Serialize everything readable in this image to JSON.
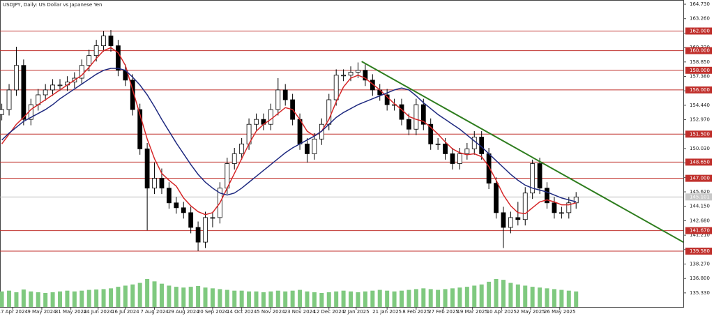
{
  "chart_data": {
    "type": "candlestick",
    "title": "USDJPY, Daily:  US Dollar vs Japanese Yen",
    "xlim": [
      -1,
      375
    ],
    "ylim": [
      133.9,
      165.16
    ],
    "xticks": [
      {
        "value": 6,
        "label": "17 Apr 2024"
      },
      {
        "value": 22,
        "label": "9 May 2024"
      },
      {
        "value": 38,
        "label": "31 May 2024"
      },
      {
        "value": 53,
        "label": "24 Jun 2024"
      },
      {
        "value": 68,
        "label": "16 Jul 2024"
      },
      {
        "value": 84,
        "label": "7 Aug 2024"
      },
      {
        "value": 100,
        "label": "29 Aug 2024"
      },
      {
        "value": 116,
        "label": "20 Sep 2024"
      },
      {
        "value": 132,
        "label": "14 Oct 2024"
      },
      {
        "value": 148,
        "label": "5 Nov 2024"
      },
      {
        "value": 164,
        "label": "23 Nov 2024"
      },
      {
        "value": 180,
        "label": "12 Dec 2024"
      },
      {
        "value": 195,
        "label": "2 Jan 2025"
      },
      {
        "value": 212,
        "label": "21 Jan 2025"
      },
      {
        "value": 228,
        "label": "8 Feb 2025"
      },
      {
        "value": 243,
        "label": "27 Feb 2025"
      },
      {
        "value": 259,
        "label": "19 Mar 2025"
      },
      {
        "value": 275,
        "label": "10 Apr 2025"
      },
      {
        "value": 291,
        "label": "2 May 2025"
      },
      {
        "value": 307,
        "label": "26 May 2025"
      }
    ],
    "yticks": [
      {
        "value": 164.73,
        "label": "164.730"
      },
      {
        "value": 163.26,
        "label": "163.260"
      },
      {
        "value": 161.79,
        "label": "161.790"
      },
      {
        "value": 160.32,
        "label": "160.320"
      },
      {
        "value": 158.85,
        "label": "158.850"
      },
      {
        "value": 157.38,
        "label": "157.380"
      },
      {
        "value": 155.91,
        "label": "155.910"
      },
      {
        "value": 154.44,
        "label": "154.440"
      },
      {
        "value": 152.97,
        "label": "152.970"
      },
      {
        "value": 151.5,
        "label": "151.500"
      },
      {
        "value": 150.03,
        "label": "150.030"
      },
      {
        "value": 148.56,
        "label": "148.560"
      },
      {
        "value": 147.09,
        "label": "147.090"
      },
      {
        "value": 145.62,
        "label": "145.620"
      },
      {
        "value": 144.15,
        "label": "144.150"
      },
      {
        "value": 142.68,
        "label": "142.680"
      },
      {
        "value": 141.21,
        "label": "141.210"
      },
      {
        "value": 139.74,
        "label": "139.740"
      },
      {
        "value": 138.27,
        "label": "138.270"
      },
      {
        "value": 136.8,
        "label": "136.800"
      },
      {
        "value": 135.33,
        "label": "135.330"
      }
    ],
    "levels": [
      {
        "value": 162,
        "label": "162.000"
      },
      {
        "value": 160,
        "label": "160.000"
      },
      {
        "value": 158,
        "label": "158.000"
      },
      {
        "value": 156,
        "label": "156.000"
      },
      {
        "value": 151.5,
        "label": "151.500"
      },
      {
        "value": 148.65,
        "label": "148.650"
      },
      {
        "value": 147,
        "label": "147.000"
      },
      {
        "value": 141.67,
        "label": "141.670"
      },
      {
        "value": 139.58,
        "label": "139.580"
      }
    ],
    "level_color": "#c0302c",
    "last_price": {
      "value": 145.101,
      "label": "145.101"
    },
    "x": [
      0,
      4,
      8,
      12,
      16,
      20,
      24,
      28,
      32,
      36,
      40,
      44,
      48,
      52,
      56,
      60,
      64,
      68,
      72,
      76,
      80,
      84,
      88,
      92,
      96,
      100,
      104,
      108,
      112,
      116,
      120,
      124,
      128,
      132,
      136,
      140,
      144,
      148,
      152,
      156,
      160,
      164,
      168,
      172,
      176,
      180,
      184,
      188,
      192,
      196,
      200,
      204,
      208,
      212,
      216,
      220,
      224,
      228,
      232,
      236,
      240,
      244,
      248,
      252,
      256,
      260,
      264,
      268,
      272,
      276,
      280,
      284,
      288,
      292,
      296,
      300,
      304,
      308,
      312,
      316
    ],
    "open": [
      153.5,
      154,
      156,
      158.5,
      153,
      154.5,
      155.5,
      156,
      156.5,
      156.5,
      156.8,
      157.2,
      158.5,
      159.5,
      160.5,
      161.5,
      160.5,
      158,
      157,
      154,
      150,
      146,
      147,
      146,
      144.5,
      144,
      143.5,
      142,
      140.5,
      143,
      143,
      146,
      148.5,
      149.5,
      150.5,
      152.5,
      153,
      152.5,
      154,
      156,
      155,
      153,
      150.5,
      149.5,
      151,
      152.5,
      155,
      157.5,
      157.5,
      157.8,
      158,
      157,
      156,
      155.5,
      154.5,
      154.5,
      153,
      152,
      154.5,
      152.5,
      150.5,
      150.5,
      149.5,
      148.5,
      149.5,
      150,
      151.2,
      149.5,
      146.5,
      143.5,
      142,
      143,
      142.8,
      145.5,
      148.5,
      146,
      144.5,
      143.5,
      143.5,
      144.5
    ],
    "high": [
      154.6,
      156.6,
      160.4,
      159.1,
      155.1,
      156.1,
      156.6,
      157.1,
      157.1,
      157.4,
      157.8,
      159.1,
      160.1,
      161.1,
      162,
      162.1,
      161.1,
      158.6,
      157.6,
      154.6,
      150.6,
      148.6,
      148,
      146.6,
      145.1,
      144.6,
      144.1,
      142.6,
      143.6,
      143.6,
      146.6,
      149.1,
      150.1,
      151.1,
      153.1,
      153.6,
      153.6,
      154.6,
      157.2,
      156.6,
      155.6,
      153.6,
      151.1,
      151.6,
      153.1,
      155.6,
      158.1,
      158.1,
      158.4,
      158.8,
      158.6,
      157.6,
      156.6,
      156.1,
      155.1,
      155.1,
      153.6,
      155.1,
      155.1,
      153.1,
      151.1,
      151.1,
      150.1,
      150.1,
      150.6,
      151.8,
      151.8,
      150.1,
      147.1,
      144.1,
      143.6,
      144.6,
      146.1,
      148.9,
      149.1,
      146.6,
      145.1,
      144.1,
      145.1,
      145.6
    ],
    "low": [
      152.9,
      153.4,
      155.4,
      152.4,
      152.4,
      153.9,
      154.9,
      155.4,
      155.9,
      155.9,
      156.2,
      156.6,
      157.9,
      158.9,
      159.9,
      159.9,
      157.4,
      156.4,
      153.4,
      149.4,
      141.7,
      145.4,
      145.4,
      143.9,
      143.4,
      142.9,
      141.4,
      139.6,
      139.9,
      142,
      142.4,
      145.4,
      147.9,
      148.9,
      149.9,
      151.9,
      151.9,
      151.9,
      153.4,
      154.4,
      152.4,
      149.9,
      148.6,
      148.9,
      150.4,
      151.9,
      154.4,
      156.9,
      156.9,
      157.2,
      156.4,
      155.4,
      154.9,
      153.9,
      153.9,
      152.4,
      151.4,
      151.4,
      151.9,
      149.9,
      149.9,
      148.9,
      147.9,
      147.9,
      148.9,
      149.4,
      148.9,
      145.9,
      142.9,
      139.9,
      141.4,
      142.2,
      142.2,
      144.9,
      145.4,
      143.9,
      142.9,
      142.9,
      142.9,
      143.9
    ],
    "close": [
      154,
      156,
      158.5,
      153,
      154.5,
      155.5,
      156,
      156.5,
      156.5,
      156.8,
      157.2,
      158.5,
      159.5,
      160.5,
      161.5,
      160.5,
      158,
      157,
      154,
      150,
      146,
      147,
      146,
      144.5,
      144,
      143.5,
      142,
      140.5,
      143,
      143,
      146,
      148.5,
      149.5,
      150.5,
      152.5,
      153,
      152.5,
      154,
      156,
      155,
      153,
      150.5,
      149.5,
      151,
      152.5,
      155,
      157.5,
      157.5,
      157.8,
      158,
      157,
      156,
      155.5,
      154.5,
      154.5,
      153,
      152,
      154.5,
      152.5,
      150.5,
      150.5,
      149.5,
      148.5,
      149.5,
      150,
      151.2,
      149.5,
      146.5,
      143.5,
      142,
      143,
      142.8,
      145.5,
      148.5,
      146,
      144.5,
      143.5,
      143.5,
      144.5,
      145.1
    ],
    "volume": [
      40,
      42,
      38,
      45,
      40,
      38,
      36,
      38,
      40,
      42,
      40,
      42,
      44,
      45,
      46,
      48,
      52,
      55,
      58,
      62,
      72,
      66,
      60,
      55,
      52,
      50,
      52,
      54,
      50,
      48,
      46,
      44,
      42,
      42,
      40,
      40,
      38,
      40,
      42,
      40,
      42,
      44,
      40,
      38,
      36,
      38,
      40,
      42,
      40,
      38,
      40,
      42,
      44,
      42,
      40,
      42,
      44,
      46,
      48,
      46,
      44,
      46,
      48,
      50,
      52,
      55,
      58,
      65,
      72,
      70,
      62,
      58,
      55,
      52,
      50,
      48,
      46,
      44,
      42,
      40
    ],
    "volume_color": "#7fc97f",
    "lines": [
      {
        "color": "#d62728",
        "values": [
          150.5,
          151.5,
          152.5,
          153.2,
          154,
          154.5,
          155,
          155.5,
          156,
          156.5,
          157,
          157.5,
          158.3,
          159.2,
          160,
          160.3,
          159.8,
          158.5,
          156,
          153.5,
          151,
          149,
          147.5,
          146.8,
          146.2,
          145,
          144.2,
          143.6,
          143.3,
          143.5,
          144.5,
          146,
          147.5,
          149,
          150.5,
          151.8,
          152.5,
          153,
          153.6,
          154.2,
          154,
          153,
          151.8,
          151.3,
          151.8,
          153,
          154.8,
          156.3,
          157.2,
          157.5,
          157.2,
          156.6,
          156,
          155.3,
          154.6,
          154,
          153.3,
          153,
          152.8,
          152.2,
          151.5,
          150.7,
          150,
          149.6,
          149.4,
          149.5,
          149.2,
          148.2,
          146.8,
          145.3,
          144.2,
          143.5,
          143.4,
          144,
          144.6,
          144.8,
          144.6,
          144.3,
          144.3,
          144.5
        ]
      },
      {
        "color": "#1f2a80",
        "values": [
          150.9,
          151.6,
          152.2,
          152.8,
          153.2,
          153.6,
          154,
          154.5,
          155.1,
          155.6,
          156.1,
          156.6,
          157.1,
          157.6,
          158,
          158.2,
          158.2,
          158,
          157.3,
          156.5,
          155.5,
          154.3,
          153,
          151.8,
          150.6,
          149.5,
          148.4,
          147.4,
          146.6,
          146,
          145.5,
          145.3,
          145.5,
          146,
          146.6,
          147.2,
          147.8,
          148.4,
          149,
          149.6,
          150.1,
          150.5,
          150.9,
          151.3,
          151.8,
          152.5,
          153.2,
          153.7,
          154.1,
          154.5,
          154.8,
          155.1,
          155.4,
          155.7,
          156,
          156.2,
          156,
          155.4,
          154.7,
          154.1,
          153.5,
          153,
          152.5,
          152,
          151.4,
          150.8,
          150.2,
          149.5,
          148.8,
          148.1,
          147.4,
          146.8,
          146.3,
          146,
          145.8,
          145.6,
          145.3,
          145,
          144.8,
          144.6
        ]
      }
    ],
    "trendline": {
      "color": "#2e7d1e",
      "x": [
        198,
        375
      ],
      "y": [
        158.9,
        140.5
      ]
    }
  }
}
